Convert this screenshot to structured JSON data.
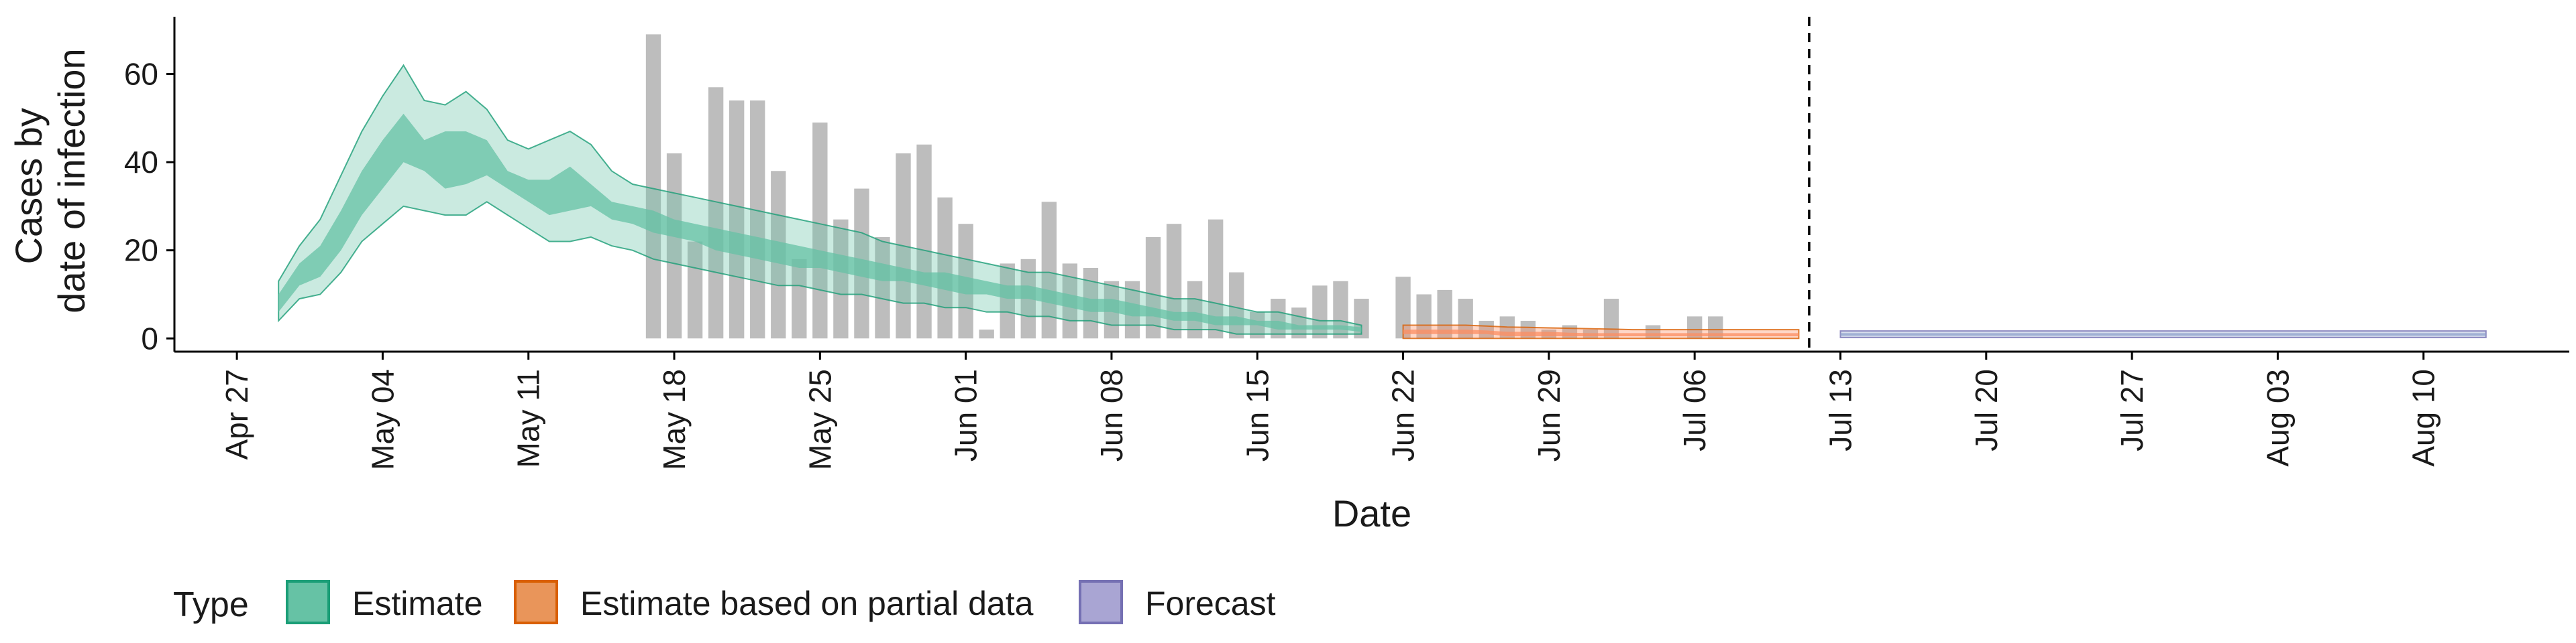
{
  "chart_data": {
    "type": "bar+ribbon",
    "xlabel": "Date",
    "ylabel_lines": [
      "Cases by",
      "date of infection"
    ],
    "y_ticks": [
      0,
      20,
      40,
      60
    ],
    "ylim": [
      -3,
      73
    ],
    "x_ticks": [
      "Apr 27",
      "May 04",
      "May 11",
      "May 18",
      "May 25",
      "Jun 01",
      "Jun 08",
      "Jun 15",
      "Jun 22",
      "Jun 29",
      "Jul 06",
      "Jul 13",
      "Jul 20",
      "Jul 27",
      "Aug 03",
      "Aug 10"
    ],
    "x_start_date": "2020-04-27",
    "xlim_days": [
      -3,
      112
    ],
    "report_date_day": 75.5,
    "bars": {
      "color": "#bdbdbd",
      "start_day": 20,
      "values": [
        69,
        42,
        22,
        57,
        54,
        54,
        38,
        18,
        49,
        27,
        34,
        23,
        42,
        44,
        32,
        26,
        2,
        17,
        18,
        31,
        17,
        16,
        13,
        13,
        23,
        26,
        13,
        27,
        15,
        6,
        9,
        7,
        12,
        13,
        9,
        0,
        14,
        10,
        11,
        9,
        4,
        5,
        4,
        2,
        3,
        2,
        9,
        0,
        3,
        0,
        5,
        5
      ]
    },
    "series": [
      {
        "name": "Estimate",
        "color": "#1b9e77",
        "fill": "#66c2a5",
        "start_day": 2,
        "inner_lower": [
          6,
          12,
          14,
          20,
          28,
          34,
          40,
          38,
          34,
          35,
          37,
          34,
          31,
          28,
          29,
          30,
          27,
          26,
          24,
          23,
          22,
          20,
          19,
          18,
          17,
          16,
          16,
          15,
          14,
          13,
          13,
          12,
          11,
          10,
          10,
          9,
          9,
          8,
          7,
          6,
          6,
          5,
          5,
          4,
          4,
          3,
          3,
          3,
          2,
          2,
          2,
          2,
          1.5
        ],
        "inner_upper": [
          10,
          17,
          21,
          29,
          38,
          45,
          51,
          45,
          47,
          47,
          45,
          38,
          36,
          36,
          39,
          35,
          31,
          30,
          29,
          27,
          26,
          25,
          24,
          23,
          22,
          21,
          20,
          19,
          18,
          17,
          16,
          15,
          15,
          14,
          13,
          12,
          12,
          11,
          10,
          9,
          9,
          8,
          7,
          6,
          6,
          5,
          5,
          4,
          4,
          3,
          3,
          3,
          2.5
        ],
        "outer_lower": [
          4,
          9,
          10,
          15,
          22,
          26,
          30,
          29,
          28,
          28,
          31,
          28,
          25,
          22,
          22,
          23,
          21,
          20,
          18,
          17,
          16,
          15,
          14,
          13,
          12,
          12,
          11,
          10,
          10,
          9,
          8,
          8,
          7,
          7,
          6,
          6,
          5,
          5,
          4,
          4,
          3,
          3,
          3,
          2,
          2,
          2,
          1,
          1,
          1,
          1,
          1,
          1,
          1
        ],
        "outer_upper": [
          13,
          21,
          27,
          37,
          47,
          55,
          62,
          54,
          53,
          56,
          52,
          45,
          43,
          45,
          47,
          44,
          38,
          35,
          34,
          33,
          32,
          31,
          30,
          29,
          28,
          27,
          26,
          25,
          24,
          22,
          21,
          20,
          19,
          18,
          17,
          16,
          15,
          15,
          14,
          13,
          12,
          11,
          10,
          9,
          9,
          8,
          7,
          6,
          6,
          5,
          4,
          4,
          3
        ]
      },
      {
        "name": "Estimate based on partial data",
        "color": "#d95f02",
        "fill": "#fc8d62",
        "start_day": 56,
        "inner_lower": [
          1,
          1,
          1,
          1,
          1,
          0.5,
          0.5,
          0.5,
          0.5,
          0.5,
          0.5,
          0.5,
          0.5,
          0.5,
          0.5,
          0.5,
          0.5,
          0.5,
          0.5,
          0.5
        ],
        "inner_upper": [
          2,
          2,
          2,
          2,
          1.8,
          1.5,
          1.5,
          1.5,
          1.3,
          1.2,
          1.2,
          1.2,
          1.2,
          1.2,
          1.2,
          1.2,
          1.2,
          1.2,
          1.2,
          1.2
        ],
        "outer_lower": [
          0,
          0,
          0,
          0,
          0,
          0,
          0,
          0,
          0,
          0,
          0,
          0,
          0,
          0,
          0,
          0,
          0,
          0,
          0,
          0
        ],
        "outer_upper": [
          3,
          3,
          3,
          3,
          2.8,
          2.6,
          2.5,
          2.4,
          2.3,
          2.2,
          2.1,
          2,
          2,
          2,
          2,
          2,
          2,
          2,
          2,
          2
        ]
      },
      {
        "name": "Forecast",
        "color": "#7570b3",
        "fill": "#8da0cb",
        "start_day": 77,
        "inner_lower": [
          0.6,
          0.6
        ],
        "inner_upper": [
          1.2,
          1.2
        ],
        "outer_lower": [
          0.2,
          0.2
        ],
        "outer_upper": [
          1.7,
          1.7
        ],
        "end_day": 108
      }
    ],
    "legend": {
      "title": "Type",
      "position": "bottom",
      "items": [
        {
          "label": "Estimate",
          "fill": "#66c2a5",
          "border": "#1b9e77"
        },
        {
          "label": "Estimate based on partial data",
          "fill": "#e9955a",
          "border": "#d95f02"
        },
        {
          "label": "Forecast",
          "fill": "#a9a5d3",
          "border": "#7570b3"
        }
      ]
    }
  }
}
